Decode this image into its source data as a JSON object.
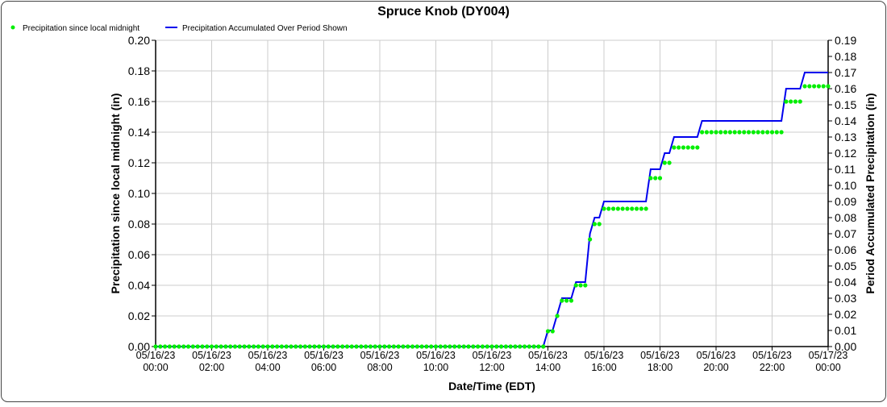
{
  "chart_data": {
    "type": "line",
    "title": "Spruce Knob (DY004)",
    "xlabel": "Date/Time (EDT)",
    "ylabel_left": "Precipitation since local midnight (in)",
    "ylabel_right": "Period Accumulated Precipitation (in)",
    "ylim_left": [
      0,
      0.2
    ],
    "ylim_right": [
      0,
      0.19
    ],
    "yticks_left": [
      "0.00",
      "0.02",
      "0.04",
      "0.06",
      "0.08",
      "0.10",
      "0.12",
      "0.14",
      "0.16",
      "0.18",
      "0.20"
    ],
    "yticks_right": [
      "0.00",
      "0.01",
      "0.02",
      "0.03",
      "0.04",
      "0.05",
      "0.06",
      "0.07",
      "0.08",
      "0.09",
      "0.10",
      "0.11",
      "0.12",
      "0.13",
      "0.14",
      "0.15",
      "0.16",
      "0.17",
      "0.18",
      "0.19"
    ],
    "xticks": [
      {
        "date": "05/16/23",
        "time": "00:00"
      },
      {
        "date": "05/16/23",
        "time": "02:00"
      },
      {
        "date": "05/16/23",
        "time": "04:00"
      },
      {
        "date": "05/16/23",
        "time": "06:00"
      },
      {
        "date": "05/16/23",
        "time": "08:00"
      },
      {
        "date": "05/16/23",
        "time": "10:00"
      },
      {
        "date": "05/16/23",
        "time": "12:00"
      },
      {
        "date": "05/16/23",
        "time": "14:00"
      },
      {
        "date": "05/16/23",
        "time": "16:00"
      },
      {
        "date": "05/16/23",
        "time": "18:00"
      },
      {
        "date": "05/16/23",
        "time": "20:00"
      },
      {
        "date": "05/16/23",
        "time": "22:00"
      },
      {
        "date": "05/17/23",
        "time": "00:00"
      }
    ],
    "x_range_hours": [
      0,
      24
    ],
    "interval_minutes": 10,
    "grid": true,
    "legend_placement": "top-left",
    "series": [
      {
        "name": "Precipitation since local midnight",
        "axis": "left",
        "style": "dots",
        "color": "#00ee00",
        "values": [
          0,
          0,
          0,
          0,
          0,
          0,
          0,
          0,
          0,
          0,
          0,
          0,
          0,
          0,
          0,
          0,
          0,
          0,
          0,
          0,
          0,
          0,
          0,
          0,
          0,
          0,
          0,
          0,
          0,
          0,
          0,
          0,
          0,
          0,
          0,
          0,
          0,
          0,
          0,
          0,
          0,
          0,
          0,
          0,
          0,
          0,
          0,
          0,
          0,
          0,
          0,
          0,
          0,
          0,
          0,
          0,
          0,
          0,
          0,
          0,
          0,
          0,
          0,
          0,
          0,
          0,
          0,
          0,
          0,
          0,
          0,
          0,
          0,
          0,
          0,
          0,
          0,
          0,
          0,
          0,
          0,
          0,
          0,
          0,
          0.01,
          0.01,
          0.02,
          0.03,
          0.03,
          0.03,
          0.04,
          0.04,
          0.04,
          0.07,
          0.08,
          0.08,
          0.09,
          0.09,
          0.09,
          0.09,
          0.09,
          0.09,
          0.09,
          0.09,
          0.09,
          0.09,
          0.11,
          0.11,
          0.11,
          0.12,
          0.12,
          0.13,
          0.13,
          0.13,
          0.13,
          0.13,
          0.13,
          0.14,
          0.14,
          0.14,
          0.14,
          0.14,
          0.14,
          0.14,
          0.14,
          0.14,
          0.14,
          0.14,
          0.14,
          0.14,
          0.14,
          0.14,
          0.14,
          0.14,
          0.14,
          0.16,
          0.16,
          0.16,
          0.16,
          0.17,
          0.17,
          0.17,
          0.17,
          0.17,
          0.17
        ]
      },
      {
        "name": "Precipitation Accumulated Over Period Shown",
        "axis": "right",
        "style": "line",
        "color": "#0000ee",
        "values": [
          0,
          0,
          0,
          0,
          0,
          0,
          0,
          0,
          0,
          0,
          0,
          0,
          0,
          0,
          0,
          0,
          0,
          0,
          0,
          0,
          0,
          0,
          0,
          0,
          0,
          0,
          0,
          0,
          0,
          0,
          0,
          0,
          0,
          0,
          0,
          0,
          0,
          0,
          0,
          0,
          0,
          0,
          0,
          0,
          0,
          0,
          0,
          0,
          0,
          0,
          0,
          0,
          0,
          0,
          0,
          0,
          0,
          0,
          0,
          0,
          0,
          0,
          0,
          0,
          0,
          0,
          0,
          0,
          0,
          0,
          0,
          0,
          0,
          0,
          0,
          0,
          0,
          0,
          0,
          0,
          0,
          0,
          0,
          0,
          0.01,
          0.01,
          0.02,
          0.03,
          0.03,
          0.03,
          0.04,
          0.04,
          0.04,
          0.07,
          0.08,
          0.08,
          0.09,
          0.09,
          0.09,
          0.09,
          0.09,
          0.09,
          0.09,
          0.09,
          0.09,
          0.09,
          0.11,
          0.11,
          0.11,
          0.12,
          0.12,
          0.13,
          0.13,
          0.13,
          0.13,
          0.13,
          0.13,
          0.14,
          0.14,
          0.14,
          0.14,
          0.14,
          0.14,
          0.14,
          0.14,
          0.14,
          0.14,
          0.14,
          0.14,
          0.14,
          0.14,
          0.14,
          0.14,
          0.14,
          0.14,
          0.16,
          0.16,
          0.16,
          0.16,
          0.17,
          0.17,
          0.17,
          0.17,
          0.17,
          0.17
        ]
      }
    ]
  }
}
